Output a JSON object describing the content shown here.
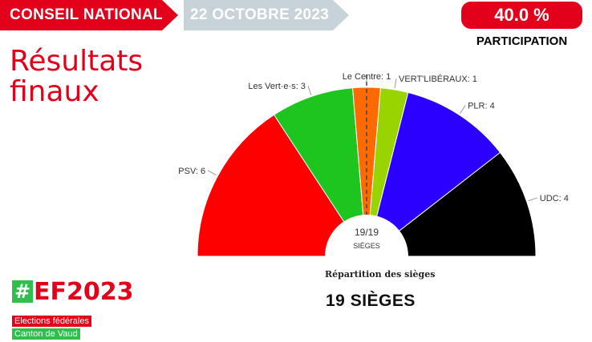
{
  "header": {
    "section": "CONSEIL NATIONAL",
    "date": "22 OCTOBRE 2023",
    "participation_value": "40.0 %",
    "participation_label": "PARTICIPATION"
  },
  "title": "Résultats finaux",
  "chart_data": {
    "type": "pie",
    "subtype": "semicircle",
    "total_seats": 19,
    "center_label": "19/19",
    "center_sublabel": "SIÈGES",
    "caption": "Répartition des sièges",
    "summary": "19 SIÈGES",
    "majority_line": true,
    "series": [
      {
        "name": "PSV",
        "value": 6,
        "label": "PSV: 6",
        "color": "#ff0000"
      },
      {
        "name": "Les Vert·e·s",
        "value": 3,
        "label": "Les Vert·e·s: 3",
        "color": "#1ec51e"
      },
      {
        "name": "Le Centre",
        "value": 1,
        "label": "Le Centre: 1",
        "color": "#ff6a00"
      },
      {
        "name": "VERT'LIBÉRAUX",
        "value": 1,
        "label": "VERT'LIBÉRAUX: 1",
        "color": "#9ad400"
      },
      {
        "name": "PLR",
        "value": 4,
        "label": "PLR: 4",
        "color": "#2b00ff"
      },
      {
        "name": "UDC",
        "value": 4,
        "label": "UDC: 4",
        "color": "#000000"
      }
    ]
  },
  "footer": {
    "logo_hash": "#",
    "logo_text": "EF2023",
    "tag1": "Elections fédérales",
    "tag2": "Canton de Vaud"
  }
}
